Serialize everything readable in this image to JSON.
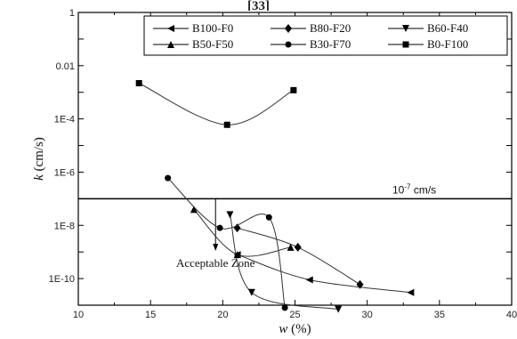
{
  "header_ref": "[33]",
  "chart_data": {
    "type": "line",
    "xlabel": "w (%)",
    "ylabel": "k (cm/s)",
    "xlim": [
      10,
      40
    ],
    "ylim_log": [
      -11,
      0
    ],
    "x_ticks": [
      10,
      15,
      20,
      25,
      30,
      35,
      40
    ],
    "y_ticks": [
      {
        "value": 1,
        "label": "1"
      },
      {
        "value": 0.01,
        "label": "0.01"
      },
      {
        "value": 0.0001,
        "label": "1E-4"
      },
      {
        "value": 1e-06,
        "label": "1E-6"
      },
      {
        "value": 1e-08,
        "label": "1E-8"
      },
      {
        "value": 1e-10,
        "label": "1E-10"
      }
    ],
    "grid": false,
    "legend_position": "top-right",
    "reference_line": {
      "value": 1e-07,
      "label_base": "10",
      "label_exp": "-7",
      "label_unit": " cm/s"
    },
    "annotation": {
      "text": "Acceptable Zone",
      "x": 19.5
    },
    "series": [
      {
        "name": "B100-F0",
        "marker": "triangle-left",
        "x": [
          21.0,
          26.0,
          33.0
        ],
        "y": [
          8e-10,
          9e-11,
          3e-11
        ]
      },
      {
        "name": "B80-F20",
        "marker": "diamond",
        "x": [
          21.0,
          25.2,
          29.5
        ],
        "y": [
          8e-09,
          1.5e-09,
          6e-11
        ]
      },
      {
        "name": "B60-F40",
        "marker": "triangle-down",
        "x": [
          20.5,
          22.0,
          28.0
        ],
        "y": [
          2.5e-08,
          3e-11,
          7e-12
        ]
      },
      {
        "name": "B50-F50",
        "marker": "triangle-up",
        "x": [
          18.0,
          21.0,
          24.7
        ],
        "y": [
          4e-08,
          8e-10,
          1.5e-09
        ]
      },
      {
        "name": "B30-F70",
        "marker": "circle",
        "x": [
          16.2,
          19.8,
          23.2,
          24.3
        ],
        "y": [
          6e-07,
          8e-09,
          2e-08,
          8e-12
        ]
      },
      {
        "name": "B0-F100",
        "marker": "square",
        "x": [
          14.2,
          20.3,
          24.9
        ],
        "y": [
          0.0022,
          6e-05,
          0.0012
        ]
      }
    ]
  }
}
